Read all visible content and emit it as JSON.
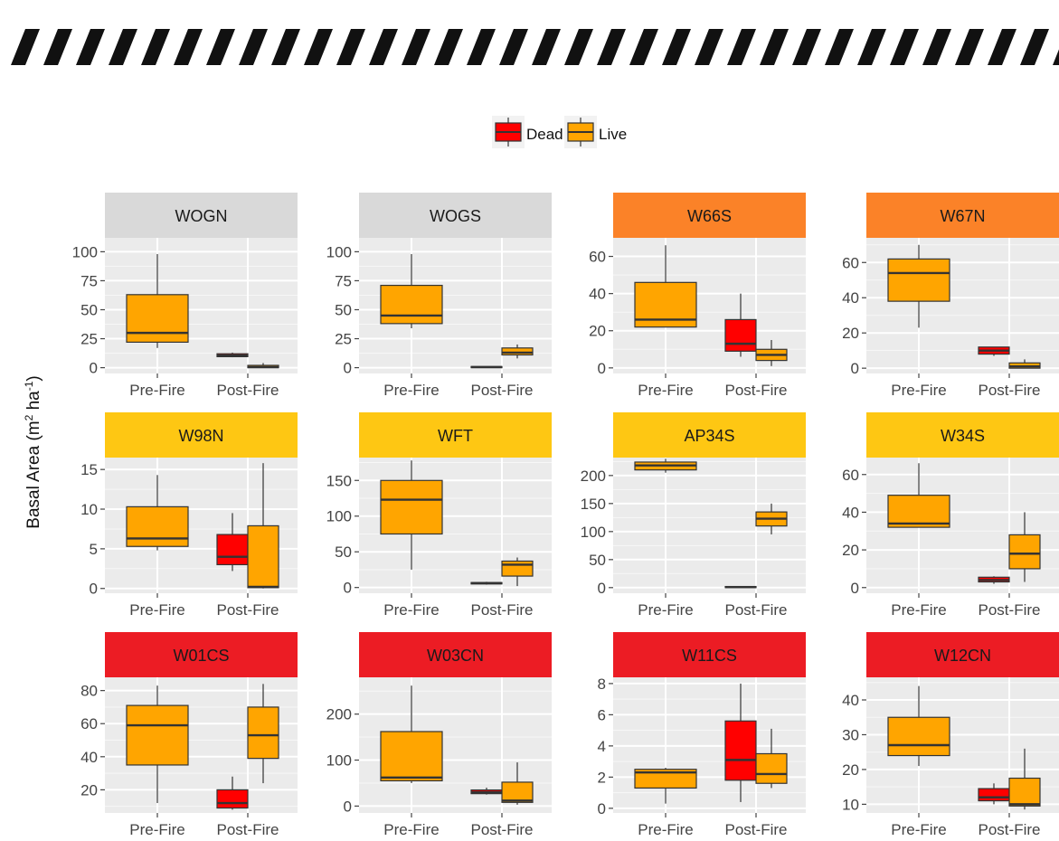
{
  "chart_data": {
    "type": "boxplot",
    "ylabel": {
      "prefix": "Basal Area (m",
      "sup1": "2",
      "mid": " ha",
      "sup2": "-1",
      "suffix": ")"
    },
    "categories": [
      "Pre-Fire",
      "Post-Fire"
    ],
    "legend": {
      "position": "top",
      "entries": [
        {
          "name": "Dead",
          "color": "#ff0000"
        },
        {
          "name": "Live",
          "color": "#ffa500"
        }
      ]
    },
    "strip_colors": {
      "grey": "#d9d9d9",
      "orange": "#fb8228",
      "yellow": "#fec713",
      "red": "#ec1c24"
    },
    "panels": [
      {
        "title": "WOGN",
        "strip": "grey",
        "ylim": [
          -5,
          112
        ],
        "ticks": [
          0,
          25,
          50,
          75,
          100
        ],
        "boxes": [
          {
            "cat": "Pre-Fire",
            "group": "Live",
            "lw": 17,
            "q1": 22,
            "median": 30,
            "q3": 63,
            "uw": 98
          },
          {
            "cat": "Post-Fire",
            "group": "Dead",
            "lw": 9,
            "q1": 9.5,
            "median": 10.5,
            "q3": 12,
            "uw": 13
          },
          {
            "cat": "Post-Fire",
            "group": "Live",
            "lw": 0,
            "q1": 0,
            "median": 0.5,
            "q3": 2,
            "uw": 4
          }
        ]
      },
      {
        "title": "WOGS",
        "strip": "grey",
        "ylim": [
          -5,
          112
        ],
        "ticks": [
          0,
          25,
          50,
          75,
          100
        ],
        "boxes": [
          {
            "cat": "Pre-Fire",
            "group": "Live",
            "lw": 34,
            "q1": 38,
            "median": 45,
            "q3": 71,
            "uw": 98
          },
          {
            "cat": "Post-Fire",
            "group": "Dead",
            "lw": 0,
            "q1": 0,
            "median": 0.5,
            "q3": 1,
            "uw": 1
          },
          {
            "cat": "Post-Fire",
            "group": "Live",
            "lw": 8,
            "q1": 11,
            "median": 13,
            "q3": 17,
            "uw": 20
          }
        ]
      },
      {
        "title": "W66S",
        "strip": "orange",
        "ylim": [
          -3,
          70
        ],
        "ticks": [
          0,
          20,
          40,
          60
        ],
        "boxes": [
          {
            "cat": "Pre-Fire",
            "group": "Live",
            "lw": 22,
            "q1": 22,
            "median": 26,
            "q3": 46,
            "uw": 66
          },
          {
            "cat": "Post-Fire",
            "group": "Dead",
            "lw": 6,
            "q1": 9,
            "median": 13,
            "q3": 26,
            "uw": 40
          },
          {
            "cat": "Post-Fire",
            "group": "Live",
            "lw": 1,
            "q1": 4,
            "median": 7,
            "q3": 10,
            "uw": 15
          }
        ]
      },
      {
        "title": "W67N",
        "strip": "orange",
        "ylim": [
          -3,
          74
        ],
        "ticks": [
          0,
          20,
          40,
          60
        ],
        "boxes": [
          {
            "cat": "Pre-Fire",
            "group": "Live",
            "lw": 23,
            "q1": 38,
            "median": 54,
            "q3": 62,
            "uw": 70
          },
          {
            "cat": "Post-Fire",
            "group": "Dead",
            "lw": 7,
            "q1": 8,
            "median": 10,
            "q3": 12,
            "uw": 12
          },
          {
            "cat": "Post-Fire",
            "group": "Live",
            "lw": 0,
            "q1": 0,
            "median": 1,
            "q3": 3,
            "uw": 5
          }
        ]
      },
      {
        "title": "W98N",
        "strip": "yellow",
        "ylim": [
          -0.6,
          16.5
        ],
        "ticks": [
          0,
          5,
          10,
          15
        ],
        "boxes": [
          {
            "cat": "Pre-Fire",
            "group": "Live",
            "lw": 4.8,
            "q1": 5.3,
            "median": 6.3,
            "q3": 10.3,
            "uw": 14.3
          },
          {
            "cat": "Post-Fire",
            "group": "Dead",
            "lw": 2.2,
            "q1": 3,
            "median": 4,
            "q3": 6.8,
            "uw": 9.5
          },
          {
            "cat": "Post-Fire",
            "group": "Live",
            "lw": 0,
            "q1": 0.1,
            "median": 0.2,
            "q3": 7.9,
            "uw": 15.8
          }
        ]
      },
      {
        "title": "WFT",
        "strip": "yellow",
        "ylim": [
          -8,
          182
        ],
        "ticks": [
          0,
          50,
          100,
          150
        ],
        "boxes": [
          {
            "cat": "Pre-Fire",
            "group": "Live",
            "lw": 25,
            "q1": 75,
            "median": 123,
            "q3": 150,
            "uw": 178
          },
          {
            "cat": "Post-Fire",
            "group": "Dead",
            "lw": 4,
            "q1": 5,
            "median": 6,
            "q3": 7,
            "uw": 8
          },
          {
            "cat": "Post-Fire",
            "group": "Live",
            "lw": 2,
            "q1": 16,
            "median": 32,
            "q3": 37,
            "uw": 42
          }
        ]
      },
      {
        "title": "AP34S",
        "strip": "yellow",
        "ylim": [
          -10,
          232
        ],
        "ticks": [
          0,
          50,
          100,
          150,
          200
        ],
        "boxes": [
          {
            "cat": "Pre-Fire",
            "group": "Live",
            "lw": 205,
            "q1": 210,
            "median": 218,
            "q3": 224,
            "uw": 230
          },
          {
            "cat": "Post-Fire",
            "group": "Dead",
            "lw": 0,
            "q1": 0,
            "median": 1,
            "q3": 2,
            "uw": 2
          },
          {
            "cat": "Post-Fire",
            "group": "Live",
            "lw": 95,
            "q1": 110,
            "median": 123,
            "q3": 135,
            "uw": 150
          }
        ]
      },
      {
        "title": "W34S",
        "strip": "yellow",
        "ylim": [
          -3,
          69
        ],
        "ticks": [
          0,
          20,
          40,
          60
        ],
        "boxes": [
          {
            "cat": "Pre-Fire",
            "group": "Live",
            "lw": 32,
            "q1": 32,
            "median": 34,
            "q3": 49,
            "uw": 66
          },
          {
            "cat": "Post-Fire",
            "group": "Dead",
            "lw": 2,
            "q1": 3,
            "median": 4,
            "q3": 5.5,
            "uw": 6
          },
          {
            "cat": "Post-Fire",
            "group": "Live",
            "lw": 3,
            "q1": 10,
            "median": 18,
            "q3": 28,
            "uw": 40
          }
        ]
      },
      {
        "title": "W01CS",
        "strip": "red",
        "ylim": [
          6,
          88
        ],
        "ticks": [
          20,
          40,
          60,
          80
        ],
        "boxes": [
          {
            "cat": "Pre-Fire",
            "group": "Live",
            "lw": 12,
            "q1": 35,
            "median": 59,
            "q3": 71,
            "uw": 83
          },
          {
            "cat": "Post-Fire",
            "group": "Dead",
            "lw": 8,
            "q1": 9,
            "median": 12,
            "q3": 20,
            "uw": 28
          },
          {
            "cat": "Post-Fire",
            "group": "Live",
            "lw": 24,
            "q1": 39,
            "median": 53,
            "q3": 70,
            "uw": 84
          }
        ]
      },
      {
        "title": "W03CN",
        "strip": "red",
        "ylim": [
          -15,
          280
        ],
        "ticks": [
          0,
          100,
          200
        ],
        "boxes": [
          {
            "cat": "Pre-Fire",
            "group": "Live",
            "lw": 50,
            "q1": 55,
            "median": 62,
            "q3": 162,
            "uw": 262
          },
          {
            "cat": "Post-Fire",
            "group": "Dead",
            "lw": 25,
            "q1": 27,
            "median": 30,
            "q3": 35,
            "uw": 40
          },
          {
            "cat": "Post-Fire",
            "group": "Live",
            "lw": 3,
            "q1": 8,
            "median": 12,
            "q3": 52,
            "uw": 95
          }
        ]
      },
      {
        "title": "W11CS",
        "strip": "red",
        "ylim": [
          -0.3,
          8.4
        ],
        "ticks": [
          0,
          2,
          4,
          6,
          8
        ],
        "boxes": [
          {
            "cat": "Pre-Fire",
            "group": "Live",
            "lw": 0.3,
            "q1": 1.3,
            "median": 2.3,
            "q3": 2.5,
            "uw": 2.6
          },
          {
            "cat": "Post-Fire",
            "group": "Dead",
            "lw": 0.4,
            "q1": 1.8,
            "median": 3.1,
            "q3": 5.6,
            "uw": 8
          },
          {
            "cat": "Post-Fire",
            "group": "Live",
            "lw": 1.3,
            "q1": 1.6,
            "median": 2.2,
            "q3": 3.5,
            "uw": 5.1
          }
        ]
      },
      {
        "title": "W12CN",
        "strip": "red",
        "ylim": [
          7.5,
          46.5
        ],
        "ticks": [
          10,
          20,
          30,
          40
        ],
        "boxes": [
          {
            "cat": "Pre-Fire",
            "group": "Live",
            "lw": 21,
            "q1": 24,
            "median": 27,
            "q3": 35,
            "uw": 44
          },
          {
            "cat": "Post-Fire",
            "group": "Dead",
            "lw": 10,
            "q1": 11,
            "median": 12,
            "q3": 14.5,
            "uw": 16
          },
          {
            "cat": "Post-Fire",
            "group": "Live",
            "lw": 8.5,
            "q1": 9.5,
            "median": 10,
            "q3": 17.5,
            "uw": 26
          }
        ]
      }
    ]
  }
}
